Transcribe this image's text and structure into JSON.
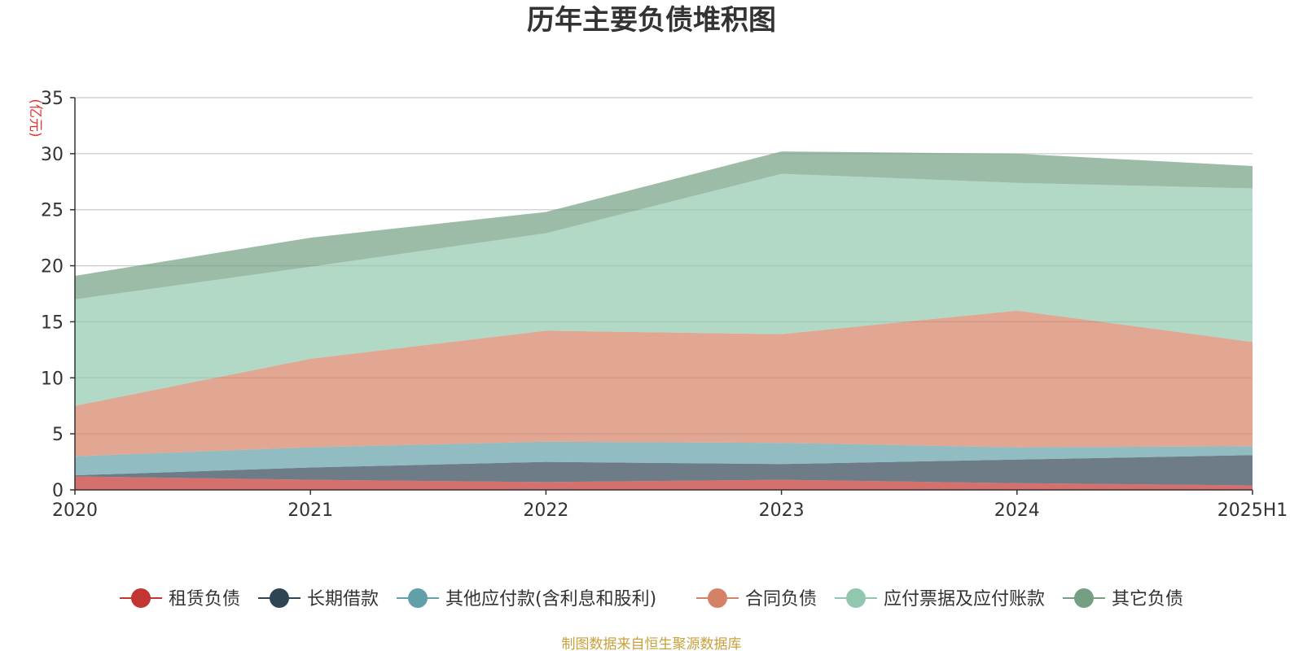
{
  "chart_data": {
    "type": "area",
    "stacked": true,
    "title": "历年主要负债堆积图",
    "unit_label": "(亿元)",
    "categories": [
      "2020",
      "2021",
      "2022",
      "2023",
      "2024",
      "2025H1"
    ],
    "ylim": [
      0,
      35
    ],
    "yticks": [
      0,
      5,
      10,
      15,
      20,
      25,
      30,
      35
    ],
    "grid": true,
    "legend_position": "bottom",
    "series": [
      {
        "name": "租赁负债",
        "color": "#c23531",
        "values": [
          1.2,
          0.9,
          0.7,
          0.9,
          0.6,
          0.4
        ]
      },
      {
        "name": "长期借款",
        "color": "#2f4554",
        "values": [
          0.1,
          1.1,
          1.8,
          1.4,
          2.1,
          2.7
        ]
      },
      {
        "name": "其他应付款(含利息和股利)",
        "color": "#61a0a8",
        "values": [
          1.7,
          1.8,
          1.8,
          1.9,
          1.1,
          0.8
        ]
      },
      {
        "name": "合同负债",
        "color": "#d48265",
        "values": [
          4.5,
          7.9,
          9.9,
          9.7,
          12.2,
          9.3
        ]
      },
      {
        "name": "应付票据及应付账款",
        "color": "#91c7ae",
        "values": [
          9.5,
          8.2,
          8.7,
          14.3,
          11.4,
          13.7
        ]
      },
      {
        "name": "其它负债",
        "color": "#749f83",
        "values": [
          2.1,
          2.6,
          1.9,
          2.0,
          2.6,
          2.0
        ]
      }
    ],
    "source": "制图数据来自恒生聚源数据库"
  }
}
